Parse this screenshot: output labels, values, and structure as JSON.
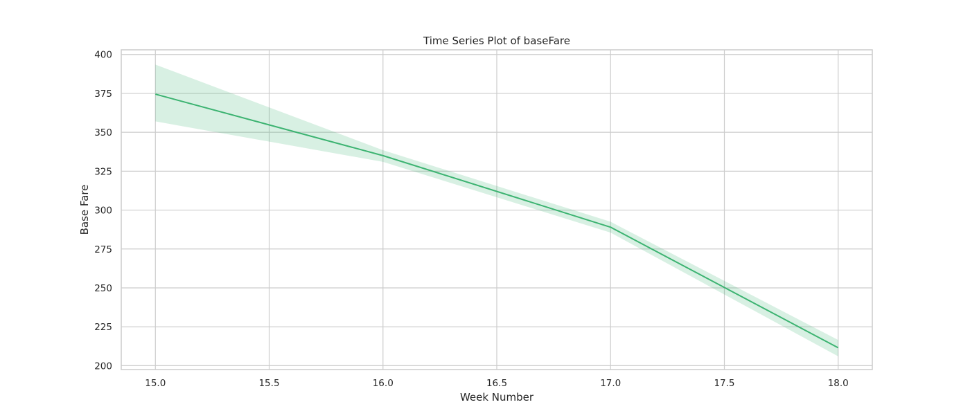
{
  "chart_data": {
    "type": "line",
    "title": "Time Series Plot of baseFare",
    "xlabel": "Week Number",
    "ylabel": "Base Fare",
    "xlim": [
      14.85,
      18.15
    ],
    "ylim": [
      197.5,
      403
    ],
    "xticks": [
      15.0,
      15.5,
      16.0,
      16.5,
      17.0,
      17.5,
      18.0
    ],
    "xtick_labels": [
      "15.0",
      "15.5",
      "16.0",
      "16.5",
      "17.0",
      "17.5",
      "18.0"
    ],
    "yticks": [
      200,
      225,
      250,
      275,
      300,
      325,
      350,
      375,
      400
    ],
    "ytick_labels": [
      "200",
      "225",
      "250",
      "275",
      "300",
      "325",
      "350",
      "375",
      "400"
    ],
    "grid": true,
    "style": {
      "line_color": "#3cb371",
      "band_color": "#3cb371",
      "grid_color": "#cccccc",
      "axes_edge_color": "#cccccc"
    },
    "series": [
      {
        "x": [
          15,
          16,
          17,
          18
        ],
        "values": [
          374.5,
          335,
          289,
          211.5
        ],
        "ci_lower": [
          357,
          331,
          285.5,
          206
        ],
        "ci_upper": [
          393.5,
          338.5,
          292.5,
          216.5
        ]
      }
    ]
  }
}
